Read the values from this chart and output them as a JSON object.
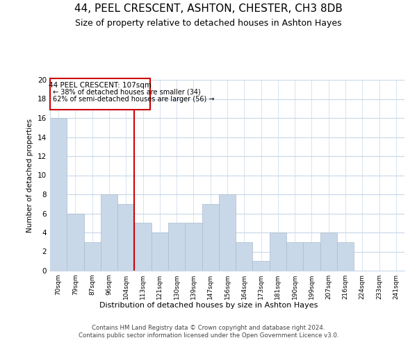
{
  "title": "44, PEEL CRESCENT, ASHTON, CHESTER, CH3 8DB",
  "subtitle": "Size of property relative to detached houses in Ashton Hayes",
  "xlabel": "Distribution of detached houses by size in Ashton Hayes",
  "ylabel": "Number of detached properties",
  "bin_labels": [
    "70sqm",
    "79sqm",
    "87sqm",
    "96sqm",
    "104sqm",
    "113sqm",
    "121sqm",
    "130sqm",
    "139sqm",
    "147sqm",
    "156sqm",
    "164sqm",
    "173sqm",
    "181sqm",
    "190sqm",
    "199sqm",
    "207sqm",
    "216sqm",
    "224sqm",
    "233sqm",
    "241sqm"
  ],
  "bar_heights": [
    16,
    6,
    3,
    8,
    7,
    5,
    4,
    5,
    5,
    7,
    8,
    3,
    1,
    4,
    3,
    3,
    4,
    3,
    0,
    0,
    0
  ],
  "bar_color": "#c8d8e8",
  "bar_edge_color": "#aabbcc",
  "vline_x_index": 4.5,
  "vline_color": "#cc0000",
  "ylim": [
    0,
    20
  ],
  "yticks": [
    0,
    2,
    4,
    6,
    8,
    10,
    12,
    14,
    16,
    18,
    20
  ],
  "annotation_title": "44 PEEL CRESCENT: 107sqm",
  "annotation_line1": "← 38% of detached houses are smaller (34)",
  "annotation_line2": "62% of semi-detached houses are larger (56) →",
  "annotation_box_color": "#ffffff",
  "annotation_box_edge": "#cc0000",
  "footer_line1": "Contains HM Land Registry data © Crown copyright and database right 2024.",
  "footer_line2": "Contains public sector information licensed under the Open Government Licence v3.0.",
  "background_color": "#ffffff",
  "grid_color": "#c8d8e8",
  "title_fontsize": 11,
  "subtitle_fontsize": 9
}
